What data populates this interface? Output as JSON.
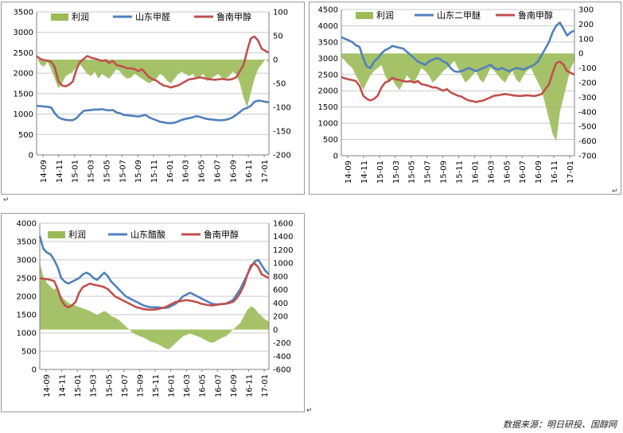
{
  "source_note": "数据来源：明日研投、国醇网",
  "para_marks": [
    "↵",
    "↵",
    "↵",
    "↵"
  ],
  "colors": {
    "profit": "#9bbb59",
    "blue": "#4f81bd",
    "red": "#c0504d",
    "grid": "#c8c8c8",
    "axis": "#808080"
  },
  "x_ticks": [
    "14-09",
    "14-11",
    "15-01",
    "15-03",
    "15-05",
    "15-07",
    "15-09",
    "15-11",
    "16-01",
    "16-03",
    "16-05",
    "16-07",
    "16-09",
    "16-11",
    "17-01"
  ],
  "chart_data": [
    {
      "type": "line",
      "legend": [
        "利润",
        "山东甲醛",
        "鲁南甲醇"
      ],
      "ylim": [
        0,
        3500
      ],
      "y_ticks": [
        0,
        500,
        1000,
        1500,
        2000,
        2500,
        3000,
        3500
      ],
      "y2lim": [
        -200,
        100
      ],
      "y2_ticks": [
        -200,
        -150,
        -100,
        -50,
        0,
        50,
        100
      ],
      "series": [
        {
          "name": "山东甲醛",
          "axis": "left",
          "color": "blue",
          "values": [
            1200,
            1195,
            1185,
            1180,
            1160,
            1020,
            920,
            880,
            860,
            850,
            850,
            900,
            1000,
            1080,
            1090,
            1100,
            1110,
            1110,
            1120,
            1100,
            1090,
            1100,
            1040,
            1020,
            980,
            970,
            960,
            950,
            940,
            960,
            980,
            920,
            880,
            850,
            810,
            800,
            780,
            780,
            790,
            820,
            860,
            880,
            900,
            920,
            950,
            930,
            900,
            880,
            870,
            860,
            850,
            850,
            860,
            880,
            920,
            980,
            1050,
            1120,
            1150,
            1200,
            1300,
            1330,
            1320,
            1300,
            1290
          ]
        },
        {
          "name": "鲁南甲醇",
          "axis": "left",
          "color": "red",
          "values": [
            2420,
            2350,
            2320,
            2310,
            2280,
            2150,
            1800,
            1700,
            1680,
            1720,
            1800,
            2100,
            2280,
            2350,
            2420,
            2380,
            2360,
            2330,
            2300,
            2320,
            2250,
            2300,
            2200,
            2180,
            2150,
            2120,
            2120,
            2100,
            2050,
            2100,
            2000,
            1900,
            1850,
            1820,
            1750,
            1700,
            1680,
            1650,
            1680,
            1700,
            1750,
            1800,
            1850,
            1860,
            1880,
            1900,
            1880,
            1860,
            1850,
            1840,
            1850,
            1860,
            1850,
            1840,
            1860,
            1900,
            2050,
            2200,
            2550,
            2850,
            2900,
            2800,
            2600,
            2550,
            2500
          ]
        },
        {
          "name": "利润",
          "axis": "right",
          "color": "profit",
          "kind": "area",
          "values": [
            5,
            -10,
            -15,
            -5,
            -20,
            -40,
            -60,
            -50,
            -35,
            -30,
            -25,
            -15,
            -10,
            -20,
            -30,
            -35,
            -25,
            -40,
            -30,
            -35,
            -40,
            -30,
            -20,
            -25,
            -35,
            -40,
            -38,
            -30,
            -35,
            -40,
            -45,
            -50,
            -45,
            -40,
            -30,
            -35,
            -45,
            -50,
            -40,
            -30,
            -25,
            -30,
            -35,
            -30,
            -40,
            -35,
            -30,
            -45,
            -40,
            -35,
            -30,
            -38,
            -40,
            -35,
            -25,
            -30,
            -50,
            -80,
            -100,
            -70,
            -40,
            -20,
            -10,
            0,
            -5
          ]
        }
      ]
    },
    {
      "type": "line",
      "legend": [
        "利润",
        "山东二甲醚",
        "鲁南甲醇"
      ],
      "ylim": [
        0,
        4500
      ],
      "y_ticks": [
        0,
        500,
        1000,
        1500,
        2000,
        2500,
        3000,
        3500,
        4000,
        4500
      ],
      "y2lim": [
        -700,
        300
      ],
      "y2_ticks": [
        -700,
        -600,
        -500,
        -400,
        -300,
        -200,
        -100,
        0,
        100,
        200,
        300
      ],
      "series": [
        {
          "name": "山东二甲醚",
          "axis": "left",
          "color": "blue",
          "values": [
            3650,
            3600,
            3550,
            3500,
            3400,
            3350,
            3000,
            2750,
            2700,
            2900,
            3000,
            3150,
            3250,
            3300,
            3380,
            3350,
            3320,
            3300,
            3200,
            3100,
            3000,
            2900,
            2850,
            2800,
            2900,
            2950,
            3000,
            2980,
            2900,
            2850,
            2700,
            2600,
            2580,
            2600,
            2650,
            2700,
            2650,
            2600,
            2650,
            2700,
            2750,
            2800,
            2700,
            2650,
            2700,
            2650,
            2600,
            2650,
            2700,
            2680,
            2650,
            2700,
            2750,
            2800,
            2900,
            3100,
            3300,
            3500,
            3800,
            4000,
            4100,
            3900,
            3700,
            3800,
            3850
          ]
        },
        {
          "name": "鲁南甲醇",
          "axis": "left",
          "color": "red",
          "values": [
            2420,
            2380,
            2350,
            2330,
            2300,
            2150,
            1850,
            1750,
            1700,
            1750,
            1850,
            2100,
            2250,
            2300,
            2400,
            2350,
            2330,
            2300,
            2280,
            2300,
            2250,
            2300,
            2200,
            2180,
            2150,
            2100,
            2100,
            2050,
            2000,
            2050,
            1950,
            1900,
            1850,
            1820,
            1750,
            1700,
            1680,
            1650,
            1680,
            1700,
            1750,
            1800,
            1850,
            1860,
            1880,
            1900,
            1880,
            1860,
            1850,
            1840,
            1850,
            1860,
            1850,
            1840,
            1860,
            1900,
            2050,
            2200,
            2550,
            2850,
            2900,
            2800,
            2600,
            2550,
            2500
          ]
        },
        {
          "name": "利润",
          "axis": "right",
          "color": "profit",
          "kind": "area",
          "values": [
            -20,
            -50,
            -80,
            -100,
            -150,
            -200,
            -250,
            -200,
            -150,
            -120,
            -100,
            -80,
            -150,
            -200,
            -180,
            -220,
            -250,
            -200,
            -150,
            -180,
            -200,
            -150,
            -100,
            -120,
            -150,
            -200,
            -180,
            -150,
            -120,
            -100,
            -80,
            -50,
            -100,
            -150,
            -200,
            -180,
            -150,
            -120,
            -180,
            -200,
            -150,
            -100,
            -120,
            -150,
            -180,
            -200,
            -150,
            -120,
            -180,
            -200,
            -150,
            -120,
            -100,
            -150,
            -200,
            -250,
            -350,
            -450,
            -550,
            -600,
            -400,
            -300,
            -200,
            -100,
            -50
          ]
        }
      ]
    },
    {
      "type": "line",
      "legend": [
        "利润",
        "山东醋酸",
        "鲁南甲醇"
      ],
      "ylim": [
        0,
        4000
      ],
      "y_ticks": [
        0,
        500,
        1000,
        1500,
        2000,
        2500,
        3000,
        3500,
        4000
      ],
      "y2lim": [
        -600,
        1600
      ],
      "y2_ticks": [
        -600,
        -400,
        -200,
        0,
        200,
        400,
        600,
        800,
        1000,
        1200,
        1400,
        1600
      ],
      "series": [
        {
          "name": "山东醋酸",
          "axis": "left",
          "color": "blue",
          "values": [
            3650,
            3300,
            3200,
            3150,
            3000,
            2800,
            2500,
            2400,
            2350,
            2400,
            2450,
            2500,
            2600,
            2650,
            2600,
            2500,
            2450,
            2550,
            2650,
            2550,
            2400,
            2300,
            2200,
            2100,
            2000,
            1950,
            1900,
            1850,
            1800,
            1750,
            1720,
            1700,
            1700,
            1700,
            1690,
            1680,
            1700,
            1750,
            1800,
            1900,
            2000,
            2050,
            2100,
            2050,
            2000,
            1950,
            1900,
            1850,
            1800,
            1780,
            1780,
            1790,
            1800,
            1850,
            1900,
            2050,
            2200,
            2400,
            2600,
            2800,
            2950,
            3000,
            2850,
            2700,
            2600
          ]
        },
        {
          "name": "鲁南甲醇",
          "axis": "left",
          "color": "red",
          "values": [
            2500,
            2480,
            2470,
            2450,
            2420,
            2200,
            1900,
            1750,
            1700,
            1750,
            1850,
            2100,
            2250,
            2300,
            2350,
            2320,
            2300,
            2280,
            2250,
            2200,
            2100,
            2000,
            1950,
            1900,
            1850,
            1800,
            1750,
            1700,
            1680,
            1650,
            1640,
            1630,
            1640,
            1650,
            1680,
            1700,
            1750,
            1800,
            1850,
            1860,
            1880,
            1900,
            1880,
            1860,
            1840,
            1800,
            1780,
            1760,
            1750,
            1760,
            1780,
            1790,
            1800,
            1820,
            1850,
            1950,
            2100,
            2300,
            2600,
            2850,
            2900,
            2800,
            2600,
            2550,
            2500
          ]
        },
        {
          "name": "利润",
          "axis": "right",
          "color": "profit",
          "kind": "area",
          "values": [
            1000,
            800,
            700,
            650,
            600,
            650,
            500,
            450,
            400,
            380,
            360,
            340,
            320,
            300,
            280,
            250,
            220,
            250,
            280,
            250,
            200,
            180,
            150,
            100,
            50,
            0,
            -50,
            -80,
            -100,
            -120,
            -150,
            -180,
            -200,
            -220,
            -250,
            -280,
            -300,
            -250,
            -200,
            -150,
            -100,
            -80,
            -60,
            -80,
            -100,
            -120,
            -150,
            -180,
            -200,
            -180,
            -150,
            -120,
            -100,
            -50,
            0,
            50,
            100,
            200,
            300,
            350,
            320,
            250,
            200,
            150,
            120
          ]
        }
      ]
    }
  ]
}
